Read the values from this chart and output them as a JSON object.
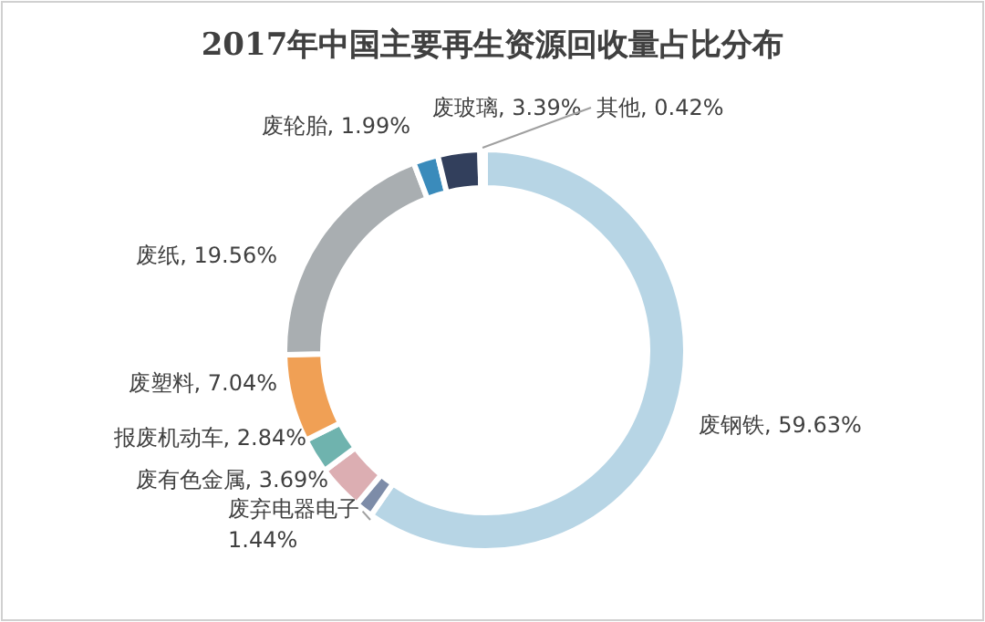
{
  "chart_data": {
    "type": "donut",
    "title": "2017年中国主要再生资源回收量占比分布",
    "categories": [
      "废钢铁",
      "废弃电器电子",
      "废有色金属",
      "报废机动车",
      "废塑料",
      "废纸",
      "废轮胎",
      "废玻璃",
      "其他"
    ],
    "values": [
      59.63,
      1.44,
      3.69,
      2.84,
      7.04,
      19.56,
      1.99,
      3.39,
      0.42
    ],
    "value_labels": [
      "59.63%",
      "1.44%",
      "3.69%",
      "2.84%",
      "7.04%",
      "19.56%",
      "1.99%",
      "3.39%",
      "0.42%"
    ],
    "colors": [
      "#b7d5e5",
      "#7d8ca8",
      "#dcaeb2",
      "#6fb3ae",
      "#f0a055",
      "#a9aeb1",
      "#3a8bbb",
      "#323f5c",
      "#dde6ee"
    ]
  }
}
